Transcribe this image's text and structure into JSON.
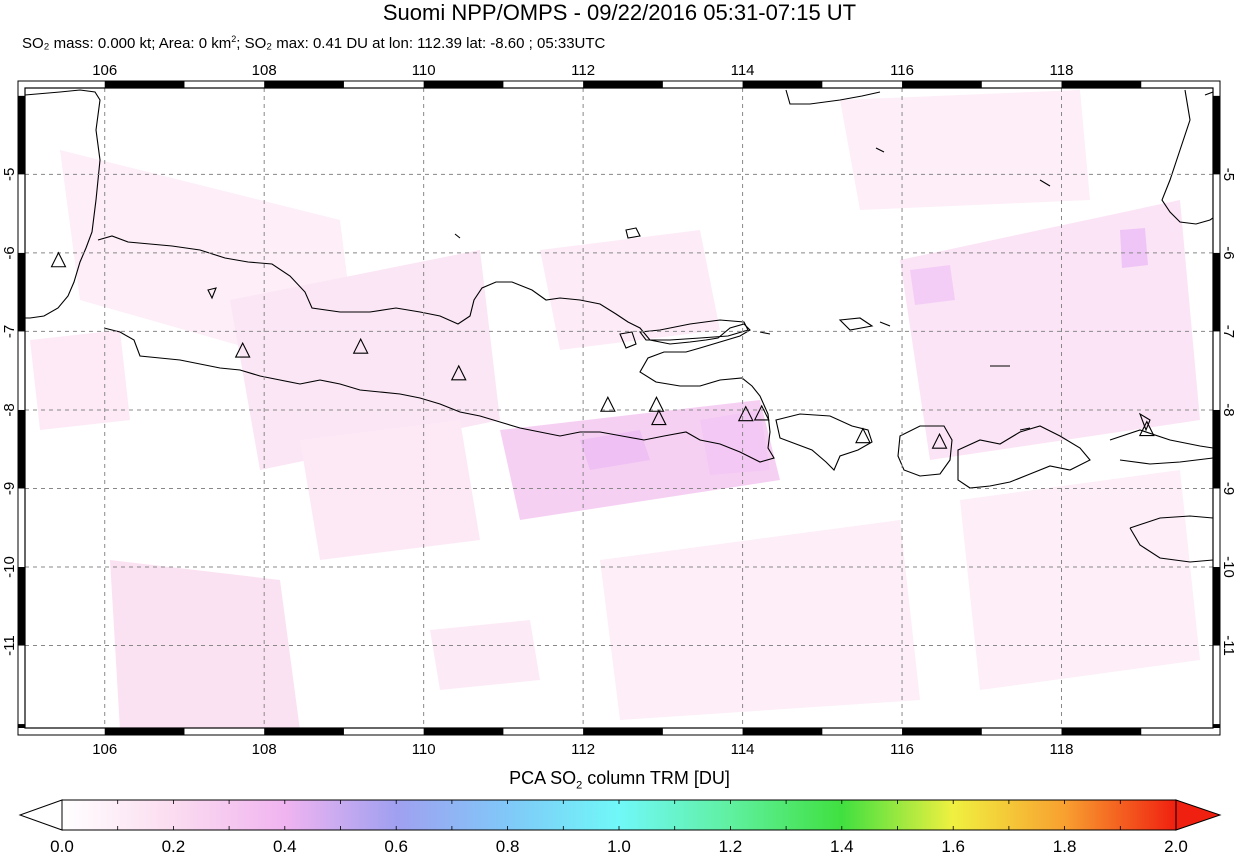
{
  "title": "Suomi NPP/OMPS - 09/22/2016 05:31-07:15 UT",
  "subtitle": {
    "mass": "SO₂ mass: 0.000 kt",
    "area_prefix": "Area: 0 km",
    "area_sup": "2",
    "max": "SO₂ max: 0.41 DU at lon: 112.39 lat: -8.60",
    "time": "05:33UTC"
  },
  "map": {
    "lon_range": [
      105,
      119.9
    ],
    "lat_range": [
      -12.05,
      -3.9
    ],
    "lon_ticks": [
      "106",
      "108",
      "110",
      "112",
      "114",
      "116",
      "118"
    ],
    "lat_ticks": [
      "-5",
      "-6",
      "-7",
      "-8",
      "-9",
      "-10",
      "-11"
    ],
    "grid": true,
    "volcano_icon": "triangle-outline"
  },
  "colorbar": {
    "label_main": "PCA SO",
    "label_sub": "2",
    "label_rest": " column TRM [DU]",
    "ticks": [
      "0.0",
      "0.2",
      "0.4",
      "0.6",
      "0.8",
      "1.0",
      "1.2",
      "1.4",
      "1.6",
      "1.8",
      "2.0"
    ],
    "range": [
      0,
      2
    ]
  },
  "volcanoes": [
    {
      "lon": 105.42,
      "lat": -6.1
    },
    {
      "lon": 107.73,
      "lat": -7.25
    },
    {
      "lon": 109.21,
      "lat": -7.2
    },
    {
      "lon": 110.44,
      "lat": -7.54
    },
    {
      "lon": 112.31,
      "lat": -7.94
    },
    {
      "lon": 112.92,
      "lat": -7.94
    },
    {
      "lon": 112.95,
      "lat": -8.11
    },
    {
      "lon": 114.04,
      "lat": -8.06
    },
    {
      "lon": 114.24,
      "lat": -8.05
    },
    {
      "lon": 115.51,
      "lat": -8.34
    },
    {
      "lon": 116.47,
      "lat": -8.41
    },
    {
      "lon": 119.07,
      "lat": -8.25
    }
  ]
}
